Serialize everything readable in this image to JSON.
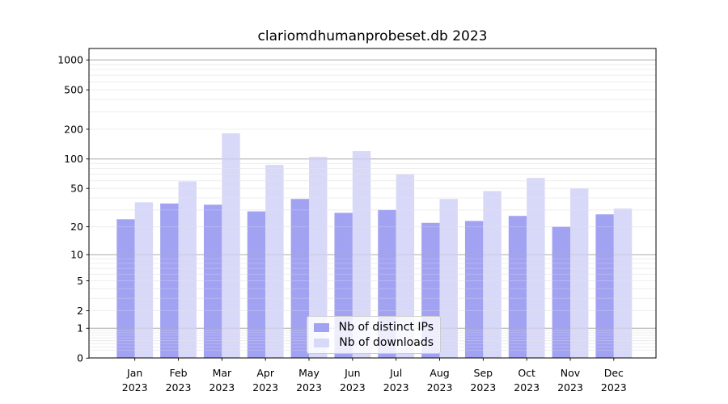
{
  "figure": {
    "title": "clariomdhumanprobeset.db 2023"
  },
  "colors": {
    "ips_bar": "#a2a2f2",
    "downloads_bar": "#d8d8f8",
    "grid_major": "#b0b0b0",
    "grid_minor": "#ececec",
    "axis": "#000000",
    "tick_text": "#000000",
    "legend_border": "#cccccc"
  },
  "chart_data": {
    "type": "bar",
    "title": "clariomdhumanprobeset.db 2023",
    "categories": [
      "Jan",
      "Feb",
      "Mar",
      "Apr",
      "May",
      "Jun",
      "Jul",
      "Aug",
      "Sep",
      "Oct",
      "Nov",
      "Dec"
    ],
    "category_year": "2023",
    "series": [
      {
        "name": "Nb of distinct IPs",
        "color_key": "ips_bar",
        "values": [
          24,
          35,
          34,
          29,
          39,
          28,
          30,
          22,
          23,
          26,
          20,
          27
        ]
      },
      {
        "name": "Nb of downloads",
        "color_key": "downloads_bar",
        "values": [
          36,
          59,
          182,
          87,
          105,
          120,
          70,
          39,
          47,
          64,
          50,
          31
        ]
      }
    ],
    "yscale": "log1p",
    "yticks": [
      0,
      1,
      2,
      5,
      10,
      20,
      50,
      100,
      200,
      500,
      1000
    ],
    "ylim": [
      0,
      1300
    ],
    "xlabel": "",
    "ylabel": "",
    "grid": true,
    "legend_position": "lower center"
  }
}
